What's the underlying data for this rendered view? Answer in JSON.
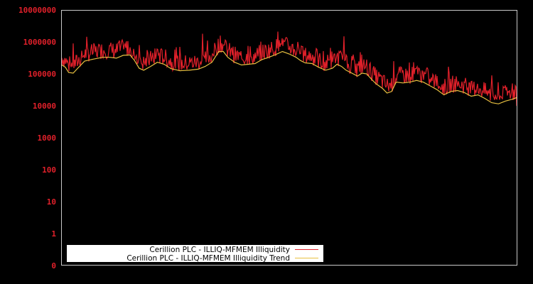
{
  "chart_data": {
    "type": "line",
    "title": "",
    "xlabel": "",
    "ylabel": "",
    "yscale": "log",
    "ylim": [
      0,
      10000000
    ],
    "y_ticks": [
      "10000000",
      "1000000",
      "100000",
      "10000",
      "1000",
      "100",
      "10",
      "1",
      "0"
    ],
    "grid": false,
    "legend_position": "lower-left",
    "x_ticks": [],
    "x_range": [
      0,
      100
    ],
    "series": [
      {
        "name": "Cerillion PLC - ILLIQ-MFMEM Illiquidity",
        "color": "#e0202a",
        "description": "noisy daily series, spikes above trend",
        "spikes": [
          {
            "x": 2.5,
            "value": 900000
          },
          {
            "x": 8.5,
            "value": 650000
          },
          {
            "x": 17,
            "value": 800000
          },
          {
            "x": 21,
            "value": 600000
          },
          {
            "x": 26,
            "value": 700000
          },
          {
            "x": 31,
            "value": 1800000
          },
          {
            "x": 32,
            "value": 1100000
          },
          {
            "x": 41,
            "value": 750000
          },
          {
            "x": 43.5,
            "value": 800000
          },
          {
            "x": 47.5,
            "value": 2100000
          },
          {
            "x": 48.5,
            "value": 1300000
          },
          {
            "x": 56,
            "value": 620000
          },
          {
            "x": 59,
            "value": 650000
          },
          {
            "x": 62,
            "value": 1500000
          },
          {
            "x": 64,
            "value": 400000
          },
          {
            "x": 66,
            "value": 400000
          },
          {
            "x": 73,
            "value": 250000
          },
          {
            "x": 75,
            "value": 130000
          },
          {
            "x": 81,
            "value": 70000
          },
          {
            "x": 87,
            "value": 40000
          },
          {
            "x": 91,
            "value": 30000
          },
          {
            "x": 94.5,
            "value": 90000
          },
          {
            "x": 97,
            "value": 40000
          }
        ]
      },
      {
        "name": "Cerillion PLC - ILLIQ-MFMEM Illiquidity Trend",
        "color": "#e8c040",
        "points": [
          [
            0,
            190000
          ],
          [
            0.8,
            160000
          ],
          [
            1.5,
            110000
          ],
          [
            2.5,
            105000
          ],
          [
            3.5,
            150000
          ],
          [
            5,
            250000
          ],
          [
            7,
            290000
          ],
          [
            9,
            330000
          ],
          [
            10.5,
            330000
          ],
          [
            12,
            310000
          ],
          [
            13.5,
            380000
          ],
          [
            15,
            390000
          ],
          [
            16,
            260000
          ],
          [
            17,
            150000
          ],
          [
            18,
            130000
          ],
          [
            19.5,
            170000
          ],
          [
            21,
            230000
          ],
          [
            22.5,
            200000
          ],
          [
            24,
            145000
          ],
          [
            26,
            125000
          ],
          [
            28,
            130000
          ],
          [
            30,
            140000
          ],
          [
            31.5,
            170000
          ],
          [
            33,
            230000
          ],
          [
            34.5,
            500000
          ],
          [
            35.5,
            500000
          ],
          [
            36.5,
            330000
          ],
          [
            38,
            230000
          ],
          [
            39.5,
            190000
          ],
          [
            41,
            200000
          ],
          [
            42.5,
            210000
          ],
          [
            44,
            280000
          ],
          [
            45.5,
            330000
          ],
          [
            47,
            400000
          ],
          [
            48.5,
            500000
          ],
          [
            50,
            420000
          ],
          [
            51.5,
            330000
          ],
          [
            52.5,
            260000
          ],
          [
            53.5,
            220000
          ],
          [
            55,
            210000
          ],
          [
            56.5,
            160000
          ],
          [
            58,
            130000
          ],
          [
            59.5,
            150000
          ],
          [
            60.5,
            200000
          ],
          [
            61.5,
            170000
          ],
          [
            62.5,
            130000
          ],
          [
            63.5,
            110000
          ],
          [
            65,
            85000
          ],
          [
            66,
            105000
          ],
          [
            67,
            100000
          ],
          [
            68,
            70000
          ],
          [
            69,
            50000
          ],
          [
            70.5,
            35000
          ],
          [
            71.5,
            25000
          ],
          [
            72.5,
            28000
          ],
          [
            73.5,
            55000
          ],
          [
            75,
            52000
          ],
          [
            76.5,
            55000
          ],
          [
            78,
            62000
          ],
          [
            79.5,
            55000
          ],
          [
            81,
            42000
          ],
          [
            82.5,
            32000
          ],
          [
            84,
            22000
          ],
          [
            85.5,
            28000
          ],
          [
            87,
            30000
          ],
          [
            88.5,
            26000
          ],
          [
            90,
            20000
          ],
          [
            91.5,
            22000
          ],
          [
            93,
            17000
          ],
          [
            94.5,
            12500
          ],
          [
            96,
            11500
          ],
          [
            97.5,
            14000
          ],
          [
            99,
            16000
          ],
          [
            100,
            18000
          ]
        ]
      }
    ]
  },
  "legend": {
    "items": [
      {
        "label": "Cerillion PLC - ILLIQ-MFMEM Illiquidity",
        "color": "#e0202a"
      },
      {
        "label": "Cerillion PLC - ILLIQ-MFMEM Illiquidity Trend",
        "color": "#e8c040"
      }
    ]
  },
  "colors": {
    "background": "#000000",
    "axes": "#c8c8c8",
    "tick_labels": "#e0202a",
    "legend_bg": "#ffffff"
  }
}
